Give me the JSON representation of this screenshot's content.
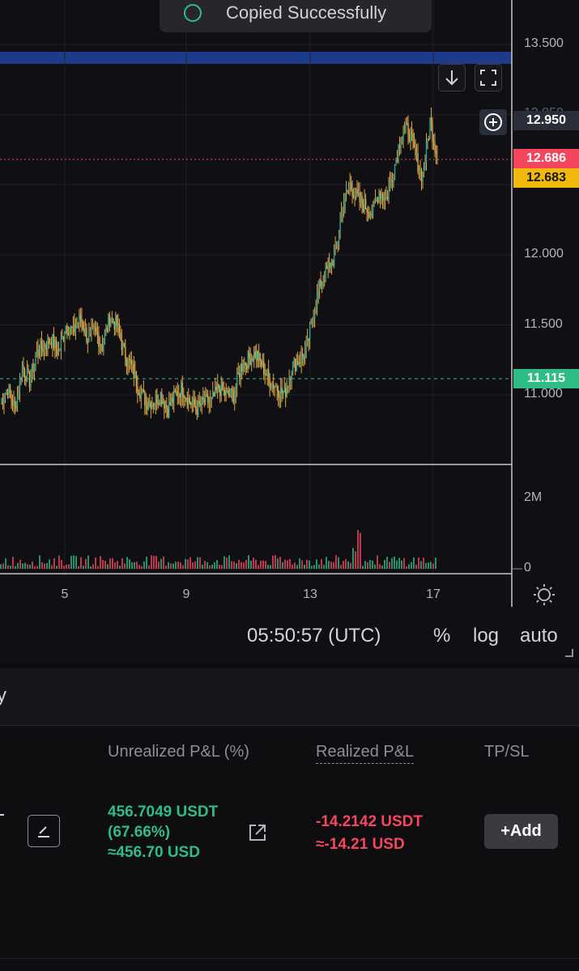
{
  "toast": {
    "message": "Copied Successfully"
  },
  "price_axis": {
    "ticks": [
      "13.500",
      "12.000",
      "11.500",
      "11.000"
    ],
    "partial_tick": "12.950"
  },
  "price_labels": {
    "hover": "12.950",
    "mark": "12.686",
    "last": "12.683",
    "entry": "11.115"
  },
  "volume_axis": {
    "ticks": [
      "2M",
      "0"
    ]
  },
  "date_axis": {
    "ticks": [
      "5",
      "9",
      "13",
      "17"
    ]
  },
  "bottom_bar": {
    "clock": "05:50:57 (UTC)",
    "percent": "%",
    "log": "log",
    "auto": "auto"
  },
  "panel": {
    "header_fragment": "y",
    "columns": {
      "unrealized": "Unrealized P&L (%)",
      "realized": "Realized P&L",
      "tpsl": "TP/SL"
    },
    "position": {
      "unrealized_value": "456.7049 USDT",
      "unrealized_pct": "(67.66%)",
      "unrealized_usd": "≈456.70 USD",
      "realized_value": "-14.2142 USDT",
      "realized_usd": "≈-14.21 USD",
      "add_label": "+Add"
    }
  },
  "colors": {
    "up": "#2ebd85",
    "down": "#f6465d",
    "candle_up": "#26a69a",
    "candle_wick": "#d9a94a",
    "accent_band": "#1f3a8a"
  },
  "chart_data": {
    "type": "candlestick",
    "x_ticks": [
      "5",
      "9",
      "13",
      "17"
    ],
    "y_ticks": [
      11.0,
      11.5,
      12.0,
      12.5,
      13.0,
      13.5
    ],
    "closes": [
      10.95,
      11.05,
      10.9,
      11.2,
      11.1,
      11.3,
      11.35,
      11.4,
      11.3,
      11.5,
      11.45,
      11.55,
      11.4,
      11.45,
      11.35,
      11.55,
      11.5,
      11.3,
      11.2,
      11.05,
      10.95,
      10.95,
      11.0,
      10.9,
      11.0,
      11.05,
      10.95,
      10.9,
      10.95,
      10.95,
      11.05,
      11.0,
      11.0,
      11.2,
      11.25,
      11.3,
      11.2,
      11.1,
      11.05,
      11.0,
      11.2,
      11.25,
      11.3,
      11.6,
      11.8,
      11.9,
      12.0,
      12.35,
      12.5,
      12.4,
      12.35,
      12.3,
      12.45,
      12.4,
      12.6,
      12.85,
      12.9,
      12.7,
      12.55,
      12.95,
      12.7
    ],
    "volume_ylim": [
      0,
      2000000
    ]
  }
}
